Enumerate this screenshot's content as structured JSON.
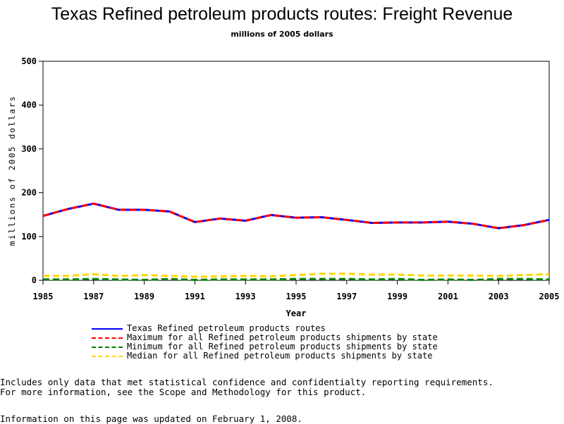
{
  "chart_data": {
    "type": "line",
    "title": "Texas Refined petroleum products routes: Freight Revenue",
    "subtitle": "millions of 2005 dollars",
    "xlabel": "Year",
    "ylabel": "millions of 2005 dollars",
    "ylim": [
      0,
      500
    ],
    "xlim": [
      1985,
      2005
    ],
    "yticks": [
      "0",
      "100",
      "200",
      "300",
      "400",
      "500"
    ],
    "xticks": [
      "1985",
      "1987",
      "1989",
      "1991",
      "1993",
      "1995",
      "1997",
      "1999",
      "2001",
      "2003",
      "2005"
    ],
    "x": [
      1985,
      1986,
      1987,
      1988,
      1989,
      1990,
      1991,
      1992,
      1993,
      1994,
      1995,
      1996,
      1997,
      1998,
      1999,
      2000,
      2001,
      2002,
      2003,
      2004,
      2005
    ],
    "series": [
      {
        "name": "Texas Refined petroleum products routes",
        "color": "#0000ff",
        "dash": "solid",
        "values": [
          147,
          163,
          175,
          161,
          161,
          157,
          133,
          141,
          136,
          149,
          143,
          144,
          138,
          131,
          132,
          132,
          134,
          129,
          119,
          126,
          138
        ]
      },
      {
        "name": "Maximum for all Refined petroleum products shipments by state",
        "color": "#ff0000",
        "dash": "dashed",
        "values": [
          147,
          163,
          175,
          161,
          161,
          157,
          133,
          141,
          136,
          149,
          143,
          144,
          138,
          131,
          132,
          132,
          134,
          129,
          119,
          126,
          138
        ]
      },
      {
        "name": "Minimum for all Refined petroleum products shipments by state",
        "color": "#008000",
        "dash": "dashed",
        "values": [
          2,
          2,
          3,
          2,
          1,
          3,
          1,
          2,
          2,
          2,
          3,
          3,
          3,
          2,
          3,
          1,
          2,
          1,
          3,
          3,
          2
        ]
      },
      {
        "name": "Median for all Refined petroleum products shipments by state",
        "color": "#ffd700",
        "dash": "dashed",
        "values": [
          10,
          10,
          14,
          10,
          12,
          10,
          8,
          9,
          10,
          9,
          12,
          15,
          15,
          13,
          13,
          11,
          11,
          11,
          10,
          12,
          14
        ]
      }
    ],
    "grid": false,
    "legend_position": "bottom"
  },
  "notes": [
    "Includes only data that met statistical confidence and confidentialty reporting requirements.",
    "For more information, see the Scope and Methodology for this product."
  ],
  "updated": "Information on this page was updated on February 1, 2008."
}
